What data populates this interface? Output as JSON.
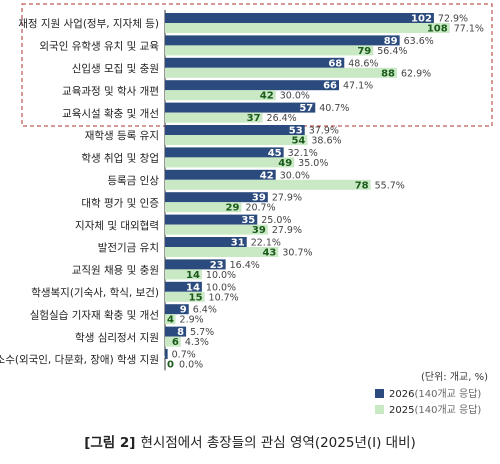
{
  "chart_data": {
    "type": "bar",
    "orientation": "horizontal",
    "categories": [
      "재정 지원 사업(정부, 지자체 등)",
      "외국인 유학생 유치 및 교육",
      "신입생 모집 및 충원",
      "교육과정 및 학사 개편",
      "교육시설 확충 및 개선",
      "재학생 등록 유지",
      "학생 취업 및 창업",
      "등록금 인상",
      "대학 평가 및 인증",
      "지자체 및 대외협력",
      "발전기금 유치",
      "교직원 채용 및 충원",
      "학생복지(기숙사, 학식, 보건)",
      "실험실습 기자재 확충 및 개선",
      "학생 심리정서 지원",
      "소수(외국인, 다문화, 장애) 학생 지원"
    ],
    "series": [
      {
        "name": "2026",
        "legend_suffix": "(140개교 응답)",
        "color": "#2b4a7e",
        "counts": [
          102,
          89,
          68,
          66,
          57,
          53,
          45,
          42,
          39,
          35,
          31,
          23,
          14,
          9,
          8,
          1
        ],
        "percent_labels": [
          "72.9%",
          "63.6%",
          "48.6%",
          "47.1%",
          "40.7%",
          "37.9%",
          "32.1%",
          "30.0%",
          "27.9%",
          "25.0%",
          "22.1%",
          "16.4%",
          "10.0%",
          "6.4%",
          "5.7%",
          "0.7%"
        ]
      },
      {
        "name": "2025",
        "legend_suffix": "(140개교 응답)",
        "color": "#c9e8c4",
        "counts": [
          108,
          79,
          88,
          42,
          37,
          54,
          49,
          78,
          29,
          39,
          43,
          14,
          15,
          4,
          6,
          0
        ],
        "percent_labels": [
          "77.1%",
          "56.4%",
          "62.9%",
          "30.0%",
          "26.4%",
          "38.6%",
          "35.0%",
          "55.7%",
          "20.7%",
          "27.9%",
          "30.7%",
          "10.0%",
          "10.7%",
          "2.9%",
          "4.3%",
          "0.0%"
        ]
      }
    ],
    "unit_note": "(단위: 개교, %)",
    "caption_prefix": "[그림 2]",
    "caption_text": "현시점에서 총장들의 관심 영역(2025년(Ⅰ) 대비)",
    "highlight_top_n": 5,
    "highlight_color": "#b03030"
  }
}
